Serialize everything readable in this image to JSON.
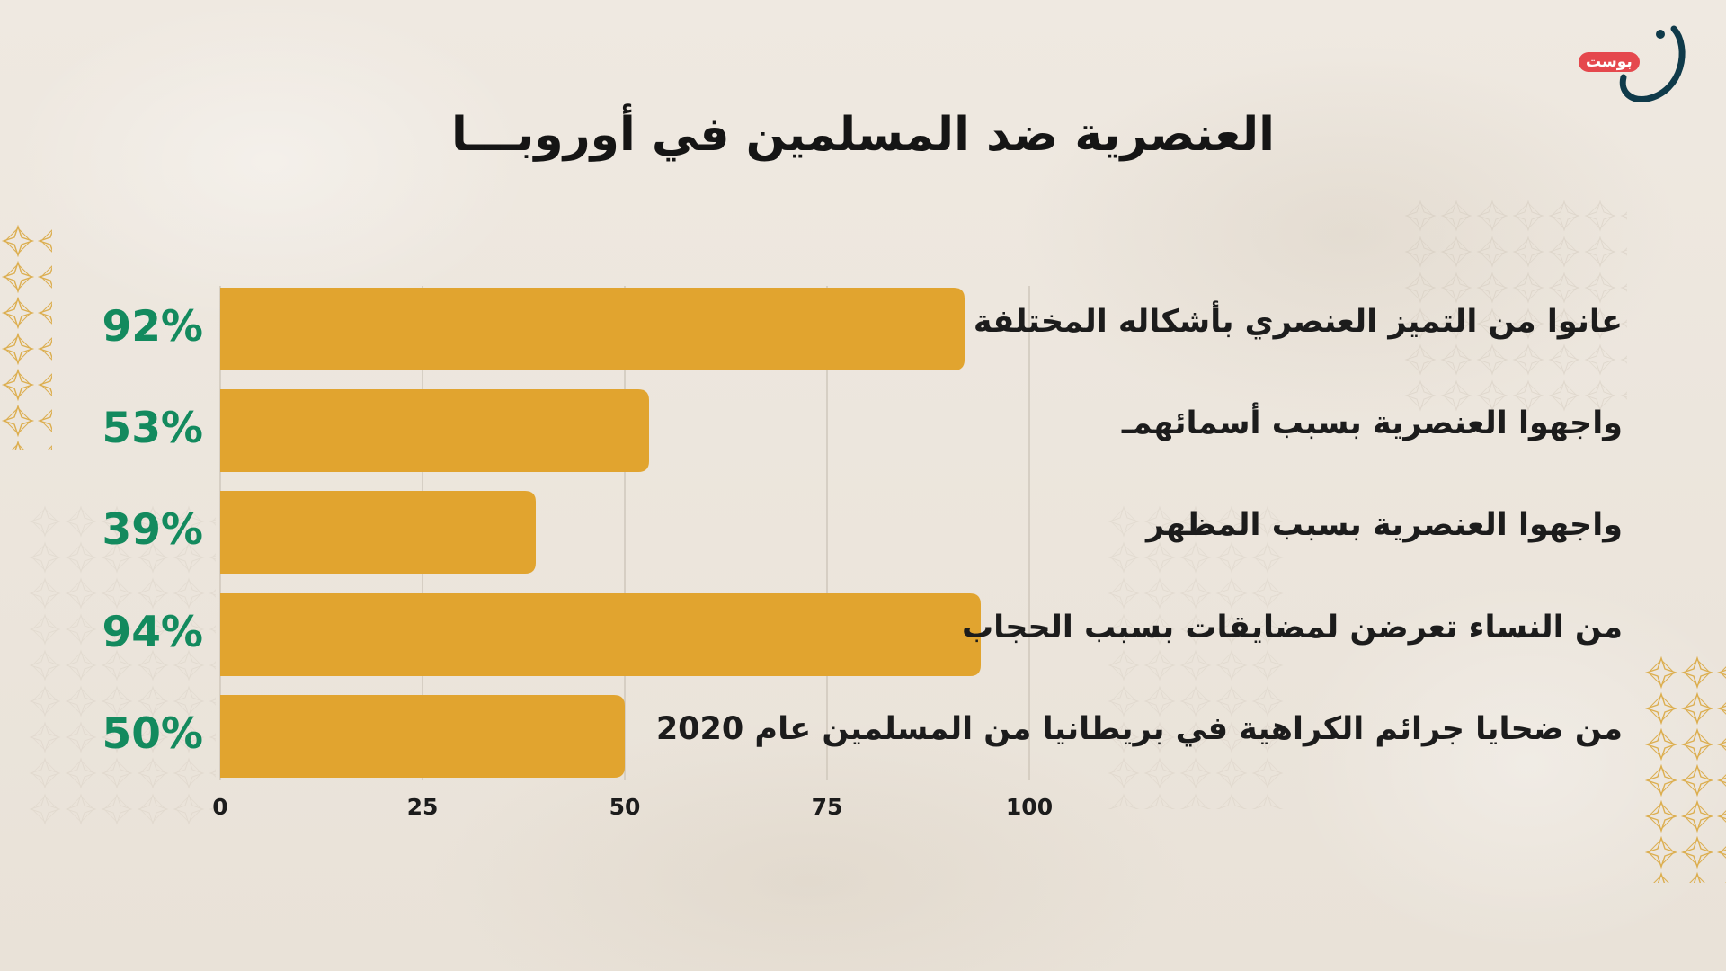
{
  "brand": {
    "badge_text": "بوست",
    "badge_color": "#e5484d",
    "mark_color": "#0f3a4a"
  },
  "colors": {
    "bar": "#e1a42f",
    "percent_text": "#138a5e",
    "gridline": "#cfc7bb",
    "background": "#ece6dd"
  },
  "chart_data": {
    "type": "bar",
    "orientation": "horizontal",
    "title": "العنصرية ضد المسلمين في أوروبـــا",
    "categories": [
      "عانوا من التميز العنصري بأشكاله المختلفة",
      "واجهوا العنصرية بسبب أسمائهمـ",
      "واجهوا العنصرية بسبب المظهر",
      "من النساء تعرضن لمضايقات بسبب الحجاب",
      "من ضحايا جرائم الكراهية في بريطانيا من المسلمين عام 2020"
    ],
    "values": [
      92,
      53,
      39,
      94,
      50
    ],
    "value_labels": [
      "92%",
      "53%",
      "39%",
      "94%",
      "50%"
    ],
    "x_ticks": [
      "0",
      "25",
      "50",
      "75",
      "100"
    ],
    "xlim": [
      0,
      100
    ],
    "grid": true,
    "legend": "none"
  }
}
